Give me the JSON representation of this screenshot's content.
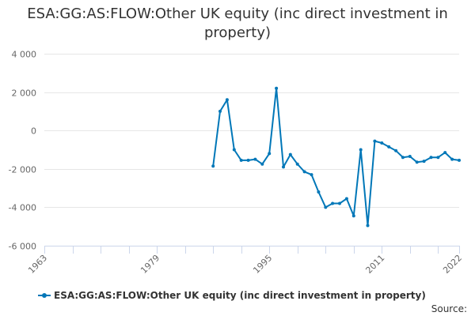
{
  "chart_data": {
    "type": "line",
    "title": "ESA:GG:AS:FLOW:Other UK equity (inc direct investment in property)",
    "xlabel": "",
    "ylabel": "",
    "xlim": [
      1963,
      2022
    ],
    "ylim": [
      -6000,
      4000
    ],
    "x_ticks": [
      "1963",
      "1979",
      "1995",
      "2011",
      "2022"
    ],
    "y_ticks": [
      "4 000",
      "2 000",
      "0",
      "-2 000",
      "-4 000",
      "-6 000"
    ],
    "y_tick_values": [
      4000,
      2000,
      0,
      -2000,
      -4000,
      -6000
    ],
    "grid": true,
    "legend_position": "bottom",
    "series": [
      {
        "name": "ESA:GG:AS:FLOW:Other UK equity (inc direct investment in property)",
        "color": "#0077b8",
        "x": [
          1987,
          1988,
          1989,
          1990,
          1991,
          1992,
          1993,
          1994,
          1995,
          1996,
          1997,
          1998,
          1999,
          2000,
          2001,
          2002,
          2003,
          2004,
          2005,
          2006,
          2007,
          2008,
          2009,
          2010,
          2011,
          2012,
          2013,
          2014,
          2015,
          2016,
          2017,
          2018,
          2019,
          2020,
          2021,
          2022
        ],
        "values": [
          -1850,
          1000,
          1600,
          -1000,
          -1550,
          -1550,
          -1500,
          -1750,
          -1200,
          2200,
          -1900,
          -1250,
          -1750,
          -2150,
          -2300,
          -3200,
          -4000,
          -3800,
          -3800,
          -3550,
          -4450,
          -1000,
          -4950,
          -550,
          -650,
          -850,
          -1050,
          -1400,
          -1350,
          -1650,
          -1600,
          -1400,
          -1400,
          -1150,
          -1500,
          -1550
        ]
      }
    ],
    "credits": "Source:"
  }
}
